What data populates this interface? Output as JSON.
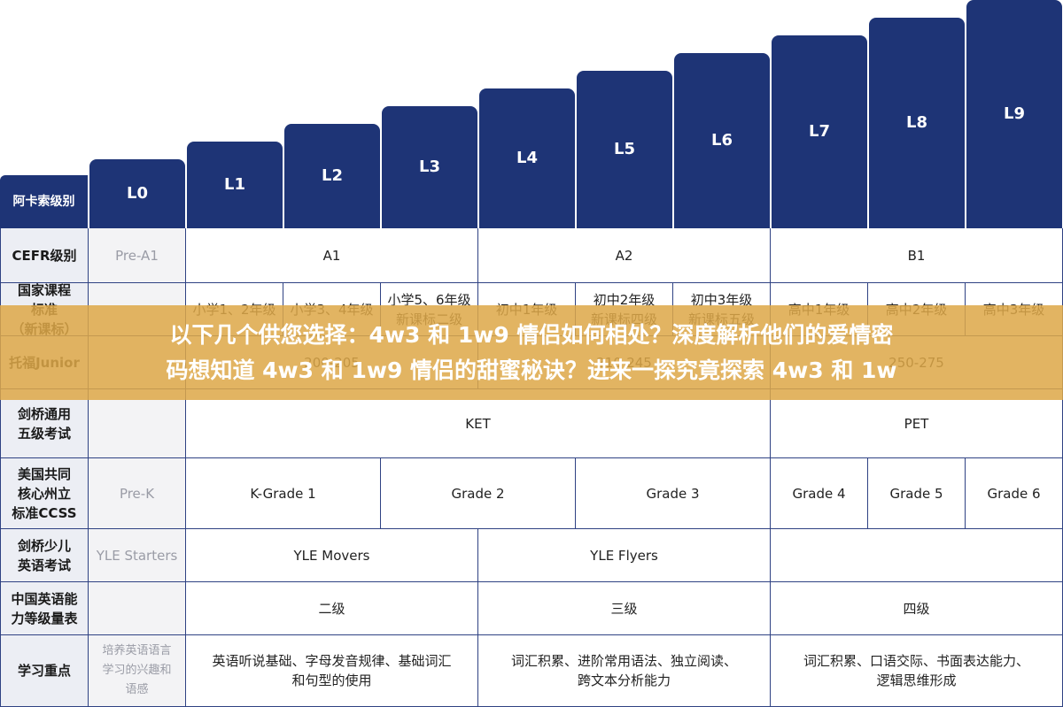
{
  "header": {
    "label": "阿卡索级别",
    "levels": [
      "L0",
      "L1",
      "L2",
      "L3",
      "L4",
      "L5",
      "L6",
      "L7",
      "L8",
      "L9"
    ]
  },
  "rows": [
    {
      "label": [
        "CEFR级别"
      ],
      "cells": [
        [
          "Pre-A1"
        ],
        [
          "A1"
        ],
        [
          "A2"
        ],
        [
          "B1"
        ]
      ]
    },
    {
      "label": [
        "国家课程",
        "标准",
        "（新课标）"
      ],
      "cells": [
        [
          "小学1、2年级"
        ],
        [
          "小学3、4年级"
        ],
        [
          "小学5、6年级",
          "新课标二级"
        ],
        [
          "初中1年级"
        ],
        [
          "初中2年级",
          "新课标四级"
        ],
        [
          "初中3年级",
          "新课标五级"
        ],
        [
          "高中1年级"
        ],
        [
          "高中2年级"
        ],
        [
          "高中3年级"
        ]
      ]
    },
    {
      "label": [
        "托福Junior"
      ],
      "cells": [
        [
          "200-205"
        ],
        [
          "210-245"
        ],
        [
          "250-275"
        ]
      ]
    },
    {
      "label": [
        "剑桥通用",
        "五级考试"
      ],
      "cells": [
        [
          "KET"
        ],
        [
          "PET"
        ]
      ]
    },
    {
      "label": [
        "美国共同",
        "核心州立",
        "标准CCSS"
      ],
      "cells": [
        [
          "Pre-K"
        ],
        [
          "K-Grade 1"
        ],
        [
          "Grade 2"
        ],
        [
          "Grade 3"
        ],
        [
          "Grade 4"
        ],
        [
          "Grade 5"
        ],
        [
          "Grade 6"
        ]
      ]
    },
    {
      "label": [
        "剑桥少儿",
        "英语考试"
      ],
      "cells": [
        [
          "YLE Starters"
        ],
        [
          "YLE Movers"
        ],
        [
          "YLE Flyers"
        ]
      ]
    },
    {
      "label": [
        "中国英语能",
        "力等级量表"
      ],
      "cells": [
        [
          "二级"
        ],
        [
          "三级"
        ],
        [
          "四级"
        ]
      ]
    },
    {
      "label": [
        "学习重点"
      ],
      "cells": [
        [
          "培养英语语言",
          "学习的兴趣和",
          "语感"
        ],
        [
          "英语听说基础、字母发音规律、基础词汇",
          "和句型的使用"
        ],
        [
          "词汇积累、进阶常用语法、独立阅读、",
          "跨文本分析能力"
        ],
        [
          "词汇积累、口语交际、书面表达能力、",
          "逻辑思维形成"
        ]
      ]
    }
  ],
  "banner": [
    "以下几个供您选择：4w3 和 1w9 情侣如何相处？深度解析他们的爱情密",
    "码想知道 4w3 和 1w9 情侣的甜蜜秘诀？进来一探究竟探索 4w3 和 1w"
  ]
}
